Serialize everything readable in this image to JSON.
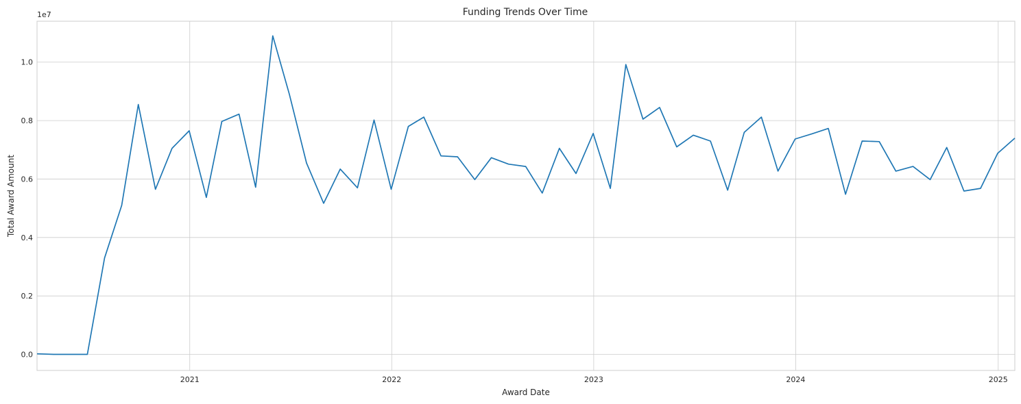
{
  "chart_data": {
    "type": "line",
    "title": "Funding Trends Over Time",
    "xlabel": "Award Date",
    "ylabel": "Total Award Amount",
    "y_scale_label": "1e7",
    "x_ticks": [
      "2021",
      "2022",
      "2023",
      "2024",
      "2025"
    ],
    "y_ticks": [
      "0.0",
      "0.2",
      "0.4",
      "0.6",
      "0.8",
      "1.0"
    ],
    "ylim": [
      -0.055,
      1.14
    ],
    "y_multiplier": 10000000,
    "xlim": [
      "2020-03-31",
      "2025-01-31"
    ],
    "grid": true,
    "color": "#1f77b4",
    "series": [
      {
        "x": [
          "2020-03-31",
          "2020-04-30",
          "2020-05-31",
          "2020-06-30",
          "2020-07-31",
          "2020-08-31",
          "2020-09-30",
          "2020-10-31",
          "2020-11-30",
          "2020-12-31",
          "2021-01-31",
          "2021-02-28",
          "2021-03-31",
          "2021-04-30",
          "2021-05-31",
          "2021-06-30",
          "2021-07-31",
          "2021-08-31",
          "2021-09-30",
          "2021-10-31",
          "2021-11-30",
          "2021-12-31",
          "2022-01-31",
          "2022-02-28",
          "2022-03-31",
          "2022-04-30",
          "2022-05-31",
          "2022-06-30",
          "2022-07-31",
          "2022-08-31",
          "2022-09-30",
          "2022-10-31",
          "2022-11-30",
          "2022-12-31",
          "2023-01-31",
          "2023-02-28",
          "2023-03-31",
          "2023-04-30",
          "2023-05-31",
          "2023-06-30",
          "2023-07-31",
          "2023-08-31",
          "2023-09-30",
          "2023-10-31",
          "2023-11-30",
          "2023-12-31",
          "2024-01-31",
          "2024-02-29",
          "2024-03-31",
          "2024-04-30",
          "2024-05-31",
          "2024-06-30",
          "2024-07-31",
          "2024-08-31",
          "2024-09-30",
          "2024-10-31",
          "2024-11-30",
          "2024-12-31",
          "2025-01-31"
        ],
        "values": [
          0.002,
          0.0,
          0.0,
          0.0,
          0.33,
          0.51,
          0.855,
          0.565,
          0.705,
          0.765,
          0.537,
          0.797,
          0.822,
          0.572,
          1.09,
          0.89,
          0.655,
          0.517,
          0.634,
          0.57,
          0.802,
          0.565,
          0.78,
          0.812,
          0.679,
          0.676,
          0.598,
          0.673,
          0.651,
          0.643,
          0.552,
          0.705,
          0.619,
          0.756,
          0.568,
          0.992,
          0.805,
          0.845,
          0.71,
          0.75,
          0.73,
          0.562,
          0.76,
          0.812,
          0.627,
          0.737,
          0.755,
          0.773,
          0.548,
          0.73,
          0.728,
          0.627,
          0.643,
          0.598,
          0.708,
          0.559,
          0.568,
          0.688,
          0.74
        ]
      }
    ]
  }
}
